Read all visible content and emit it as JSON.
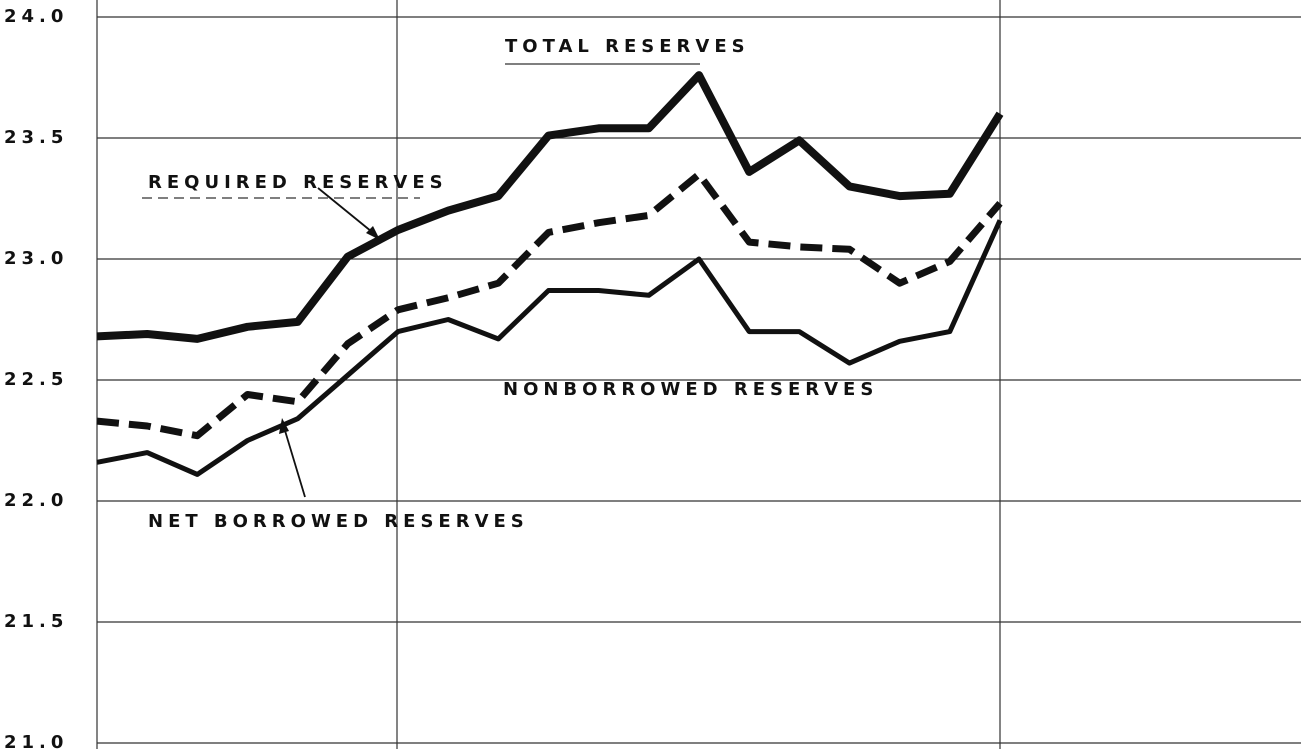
{
  "chart_data": {
    "type": "line",
    "categories": [
      null,
      null,
      null,
      null,
      null,
      null,
      null,
      null,
      null,
      null,
      null,
      null,
      null,
      null,
      null,
      null,
      null,
      null,
      null
    ],
    "series": [
      {
        "name": "TOTAL RESERVES",
        "color": "#111111",
        "values": [
          22.68,
          22.69,
          22.67,
          22.72,
          22.74,
          23.01,
          23.12,
          23.2,
          23.26,
          23.51,
          23.54,
          23.54,
          23.76,
          23.36,
          23.49,
          23.3,
          23.26,
          23.27,
          23.6
        ]
      },
      {
        "name": "REQUIRED RESERVES",
        "color": "#111111",
        "dashed": true,
        "values": [
          22.33,
          22.31,
          22.27,
          22.44,
          22.41,
          22.65,
          22.79,
          22.84,
          22.9,
          23.11,
          23.15,
          23.18,
          23.35,
          23.07,
          23.05,
          23.04,
          22.9,
          22.99,
          23.23
        ]
      },
      {
        "name": "NONBORROWED RESERVES",
        "color": "#111111",
        "values": [
          22.16,
          22.2,
          22.11,
          22.25,
          22.34,
          22.52,
          22.7,
          22.75,
          22.67,
          22.87,
          22.87,
          22.85,
          23.0,
          22.7,
          22.7,
          22.57,
          22.66,
          22.7,
          23.16
        ]
      }
    ],
    "annotations": [
      "NET BORROWED RESERVES"
    ],
    "ylim": [
      21,
      24
    ],
    "yticks": [
      {
        "value": 21,
        "label": "21.0"
      },
      21.5,
      {
        "value": 22,
        "label": "22.0"
      },
      22.5,
      {
        "value": 23,
        "label": "23.0"
      },
      23.5,
      {
        "value": 24,
        "label": "24.0"
      }
    ],
    "grid": true
  }
}
